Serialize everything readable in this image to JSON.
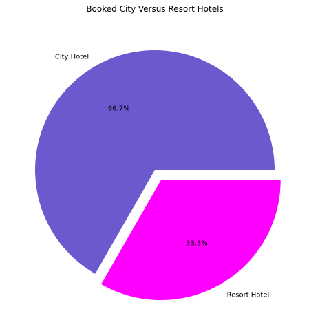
{
  "chart_data": {
    "type": "pie",
    "title": "Booked City Versus Resort Hotels",
    "categories": [
      "City Hotel",
      "Resort Hotel"
    ],
    "values": [
      66.7,
      33.3
    ],
    "value_labels": [
      "66.7%",
      "33.3%"
    ],
    "colors": [
      "#6a5acd",
      "#ff00ff"
    ],
    "explode": [
      0,
      0.1
    ],
    "legend": "none"
  }
}
